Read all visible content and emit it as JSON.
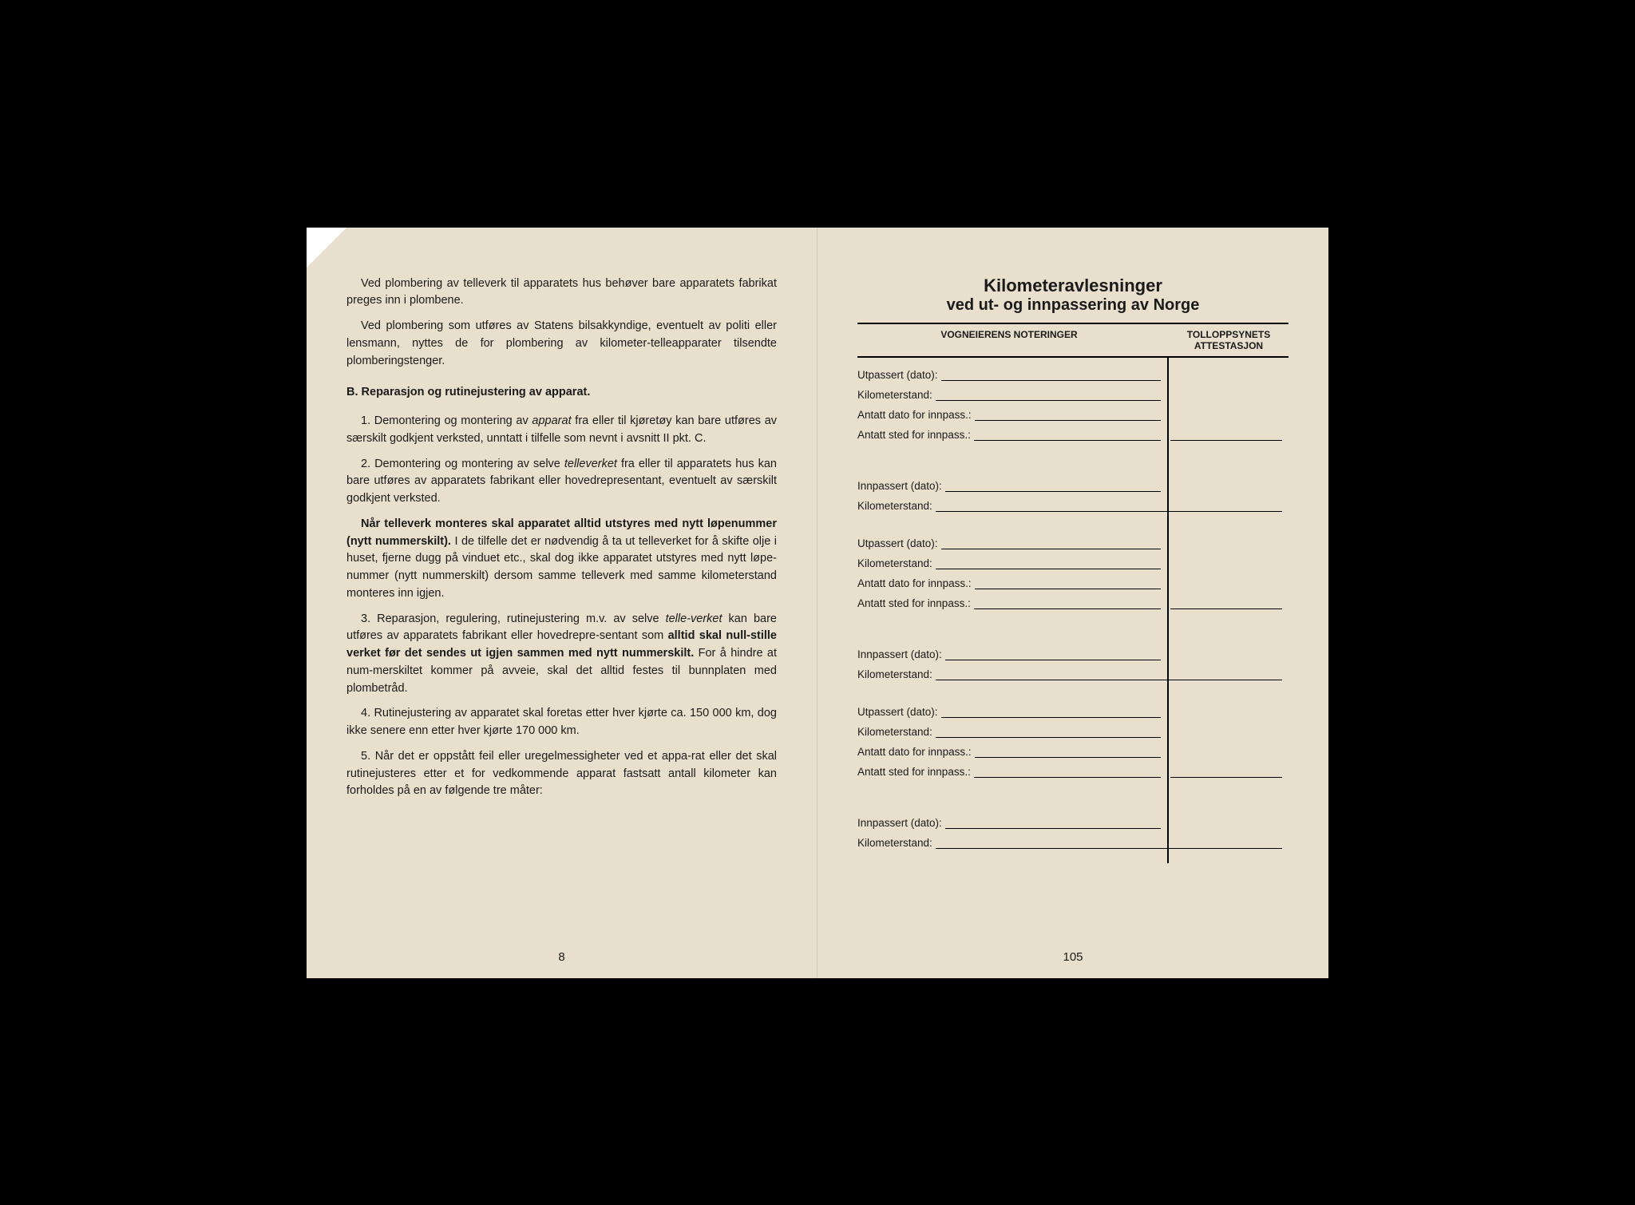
{
  "left": {
    "para1": "Ved plombering av telleverk til apparatets hus behøver bare apparatets fabrikat preges inn i plombene.",
    "para2": "Ved plombering som utføres av Statens bilsakkyndige, eventuelt av politi eller lensmann, nyttes de for plombering av kilometer-telleapparater tilsendte plomberingstenger.",
    "section_b": "B.  Reparasjon og rutinejustering av apparat.",
    "item1_a": "1. Demontering og montering av ",
    "item1_italic": "apparat",
    "item1_b": " fra eller til kjøretøy kan bare utføres av særskilt godkjent verksted, unntatt i tilfelle som nevnt i avsnitt II pkt. C.",
    "item2_a": "2. Demontering og montering av selve ",
    "item2_italic": "telleverket",
    "item2_b": " fra eller til apparatets hus kan bare utføres av apparatets fabrikant eller hovedrepresentant, eventuelt av særskilt godkjent verksted.",
    "item2_bold": "Når telleverk monteres skal apparatet alltid utstyres med nytt løpenummer (nytt nummerskilt).",
    "item2_c": " I de tilfelle det er nødvendig å ta ut telleverket for å skifte olje i huset, fjerne dugg på vinduet etc., skal dog ikke apparatet utstyres med nytt løpe-nummer (nytt nummerskilt) dersom samme telleverk med samme kilometerstand monteres inn igjen.",
    "item3_a": "3. Reparasjon, regulering, rutinejustering m.v. av selve ",
    "item3_italic": "telle-verket",
    "item3_b": " kan bare utføres av apparatets fabrikant eller hovedrepre-sentant som ",
    "item3_bold": "alltid skal null-stille verket før det sendes ut igjen sammen med nytt nummerskilt.",
    "item3_c": " For å hindre at num-merskiltet kommer på avveie, skal det alltid festes til bunnplaten med plombetråd.",
    "item4": "4. Rutinejustering av apparatet skal foretas etter hver kjørte ca. 150 000 km, dog ikke senere enn etter hver kjørte 170 000 km.",
    "item5": "5. Når det er oppstått feil eller uregelmessigheter ved et appa-rat eller det skal rutinejusteres etter et for vedkommende apparat fastsatt antall kilometer kan forholdes på en av følgende tre måter:",
    "page_num": "8"
  },
  "right": {
    "title1": "Kilometeravlesninger",
    "title2": "ved ut- og innpassering av Norge",
    "col1": "VOGNEIERENS NOTERINGER",
    "col2a": "TOLLOPPSYNETS",
    "col2b": "ATTESTASJON",
    "labels": {
      "utpassert": "Utpassert (dato):",
      "km": "Kilometerstand:",
      "antatt_dato": "Antatt dato for innpass.:",
      "antatt_sted": "Antatt sted for innpass.:",
      "innpassert": "Innpassert (dato):"
    },
    "page_num": "105"
  },
  "colors": {
    "paper": "#e8e0cc",
    "ink": "#1a1a1a",
    "bg": "#000000"
  }
}
